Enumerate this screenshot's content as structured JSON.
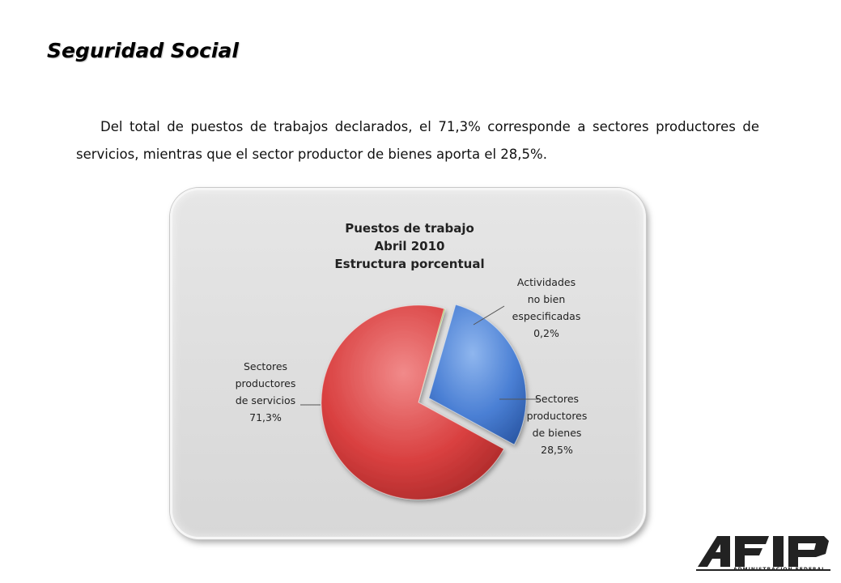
{
  "heading": "Seguridad Social",
  "paragraph": "Del total de puestos de trabajos declarados, el 71,3% corresponde a sectores productores de servicios, mientras que el sector productor de bienes aporta el 28,5%.",
  "chart_data": {
    "type": "pie",
    "title": [
      "Puestos de trabajo",
      "Abril 2010",
      "Estructura porcentual"
    ],
    "slices": [
      {
        "label_lines": [
          "Sectores",
          "productores",
          "de bienes",
          "28,5%"
        ],
        "value": 28.5,
        "color": "#4a7fd4",
        "exploded": true
      },
      {
        "label_lines": [
          "Sectores",
          "productores",
          "de servicios",
          "71,3%"
        ],
        "value": 71.3,
        "color": "#d94040",
        "exploded": false
      },
      {
        "label_lines": [
          "Actividades",
          "no bien",
          "especificadas",
          "0,2%"
        ],
        "value": 0.2,
        "color": "#9bbb59",
        "exploded": false
      }
    ],
    "legend": "none"
  },
  "logo": {
    "text": "AFIP",
    "subtitle": "ADMINISTRACION FEDERAL"
  }
}
